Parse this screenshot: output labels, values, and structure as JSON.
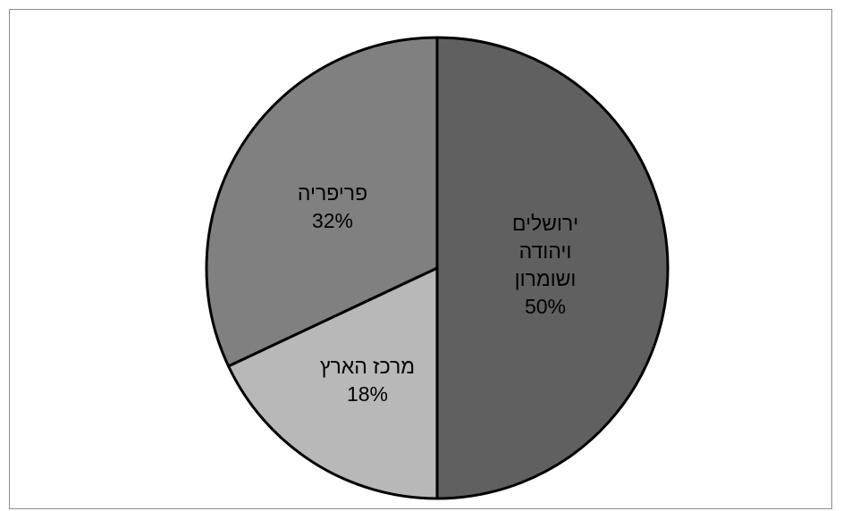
{
  "chart_data": {
    "type": "pie",
    "title": "",
    "start_angle_deg": 0,
    "direction": "clockwise",
    "slices": [
      {
        "label_lines": [
          "ירושלים",
          "ויהודה",
          "ושומרון"
        ],
        "value": 50,
        "value_label": "50%",
        "color": "#606060"
      },
      {
        "label_lines": [
          "מרכז הארץ"
        ],
        "value": 18,
        "value_label": "18%",
        "color": "#b8b8b8"
      },
      {
        "label_lines": [
          "פריפריה"
        ],
        "value": 32,
        "value_label": "32%",
        "color": "#808080"
      }
    ],
    "legend": "none",
    "border_color": "#000000"
  }
}
